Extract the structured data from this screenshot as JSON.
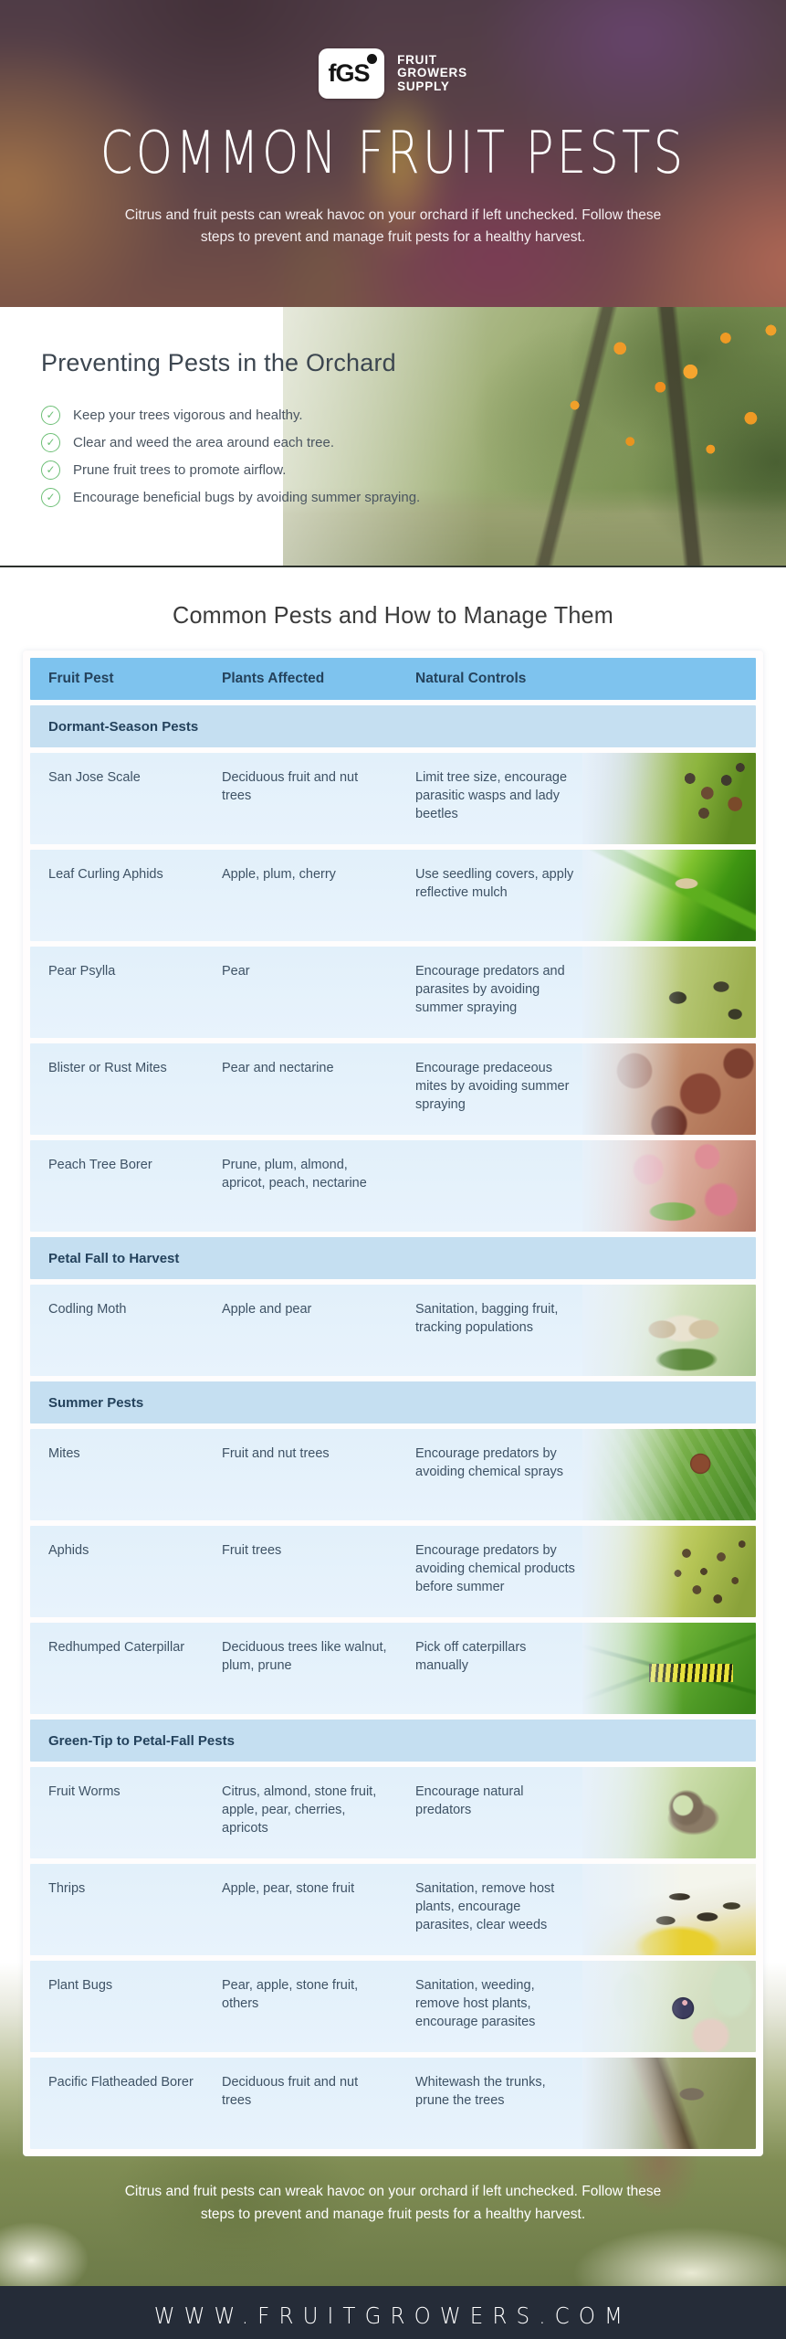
{
  "brand": {
    "logo_monogram": "fGS",
    "logo_lines": [
      "FRUIT",
      "GROWERS",
      "SUPPLY"
    ]
  },
  "hero": {
    "title": "COMMON FRUIT PESTS",
    "subtitle_line1": "Citrus and fruit pests can wreak havoc on your orchard if left unchecked. Follow",
    "subtitle_line2": "these steps to prevent and manage fruit pests for a healthy harvest."
  },
  "prevention": {
    "title": "Preventing Pests in the Orchard",
    "check_icon": "✓",
    "items": [
      "Keep your trees vigorous and healthy.",
      "Clear and weed the area around each tree.",
      "Prune fruit trees to promote airflow.",
      "Encourage beneficial bugs by avoiding summer spraying."
    ]
  },
  "table": {
    "title": "Common Pests and How to Manage Them",
    "columns": [
      "Fruit Pest",
      "Plants Affected",
      "Natural Controls"
    ],
    "sections": [
      {
        "label": "Dormant-Season Pests",
        "rows": [
          {
            "pest": "San Jose Scale",
            "plants": "Deciduous fruit and nut trees",
            "controls": "Limit tree size,  encourage parasitic wasps and lady beetles",
            "photo": "san-jose-scale-photo"
          },
          {
            "pest": "Leaf Curling Aphids",
            "plants": "Apple, plum, cherry",
            "controls": "Use seedling covers, apply reflective mulch",
            "photo": "leaf-aphid-photo"
          },
          {
            "pest": "Pear Psylla",
            "plants": "Pear",
            "controls": "Encourage predators and parasites by avoiding summer spraying",
            "photo": "pear-psylla-photo"
          },
          {
            "pest": "Blister or Rust Mites",
            "plants": "Pear and nectarine",
            "controls": "Encourage predaceous mites by avoiding summer spraying",
            "photo": "rust-mites-photo"
          },
          {
            "pest": "Peach Tree Borer",
            "plants": "Prune, plum, almond, apricot, peach, nectarine",
            "controls": "",
            "photo": "peach-borer-photo"
          }
        ]
      },
      {
        "label": "Petal Fall to Harvest",
        "rows": [
          {
            "pest": "Codling Moth",
            "plants": "Apple and pear",
            "controls": "Sanitation, bagging fruit, tracking populations",
            "photo": "codling-moth-photo"
          }
        ]
      },
      {
        "label": "Summer Pests",
        "rows": [
          {
            "pest": "Mites",
            "plants": "Fruit and nut trees",
            "controls": "Encourage predators by avoiding chemical sprays",
            "photo": "mite-photo"
          },
          {
            "pest": "Aphids",
            "plants": "Fruit trees",
            "controls": "Encourage predators by avoiding chemical products before summer",
            "photo": "aphid-colony-photo"
          },
          {
            "pest": "Redhumped Caterpillar",
            "plants": "Deciduous trees like walnut, plum, prune",
            "controls": "Pick off caterpillars manually",
            "photo": "redhumped-caterpillar-photo"
          }
        ]
      },
      {
        "label": "Green-Tip to Petal-Fall Pests",
        "rows": [
          {
            "pest": "Fruit Worms",
            "plants": "Citrus, almond, stone fruit, apple, pear, cherries, apricots",
            "controls": "Encourage natural predators",
            "photo": "fruit-worm-photo"
          },
          {
            "pest": "Thrips",
            "plants": "Apple, pear, stone fruit",
            "controls": "Sanitation, remove host plants, encourage parasites, clear weeds",
            "photo": "thrips-photo"
          },
          {
            "pest": "Plant Bugs",
            "plants": "Pear, apple, stone fruit, others",
            "controls": "Sanitation, weeding, remove host plants, encourage parasites",
            "photo": "plant-bug-photo"
          },
          {
            "pest": "Pacific Flatheaded Borer",
            "plants": "Deciduous fruit and nut trees",
            "controls": "Whitewash the trunks, prune the trees",
            "photo": "flatheaded-borer-photo"
          }
        ]
      }
    ]
  },
  "outro": {
    "line1": "Citrus and fruit pests can wreak havoc on your orchard if left unchecked. Follow",
    "line2": "these steps to prevent and manage fruit pests for a healthy harvest."
  },
  "footer": {
    "url": "WWW.FRUITGROWERS.COM"
  },
  "colors": {
    "table_header_blue": "#7ec3ee",
    "table_section_blue": "#c5dff1",
    "table_row_blue": "#e4f1fb",
    "table_text": "#3e5265",
    "check_green": "#6dbf76",
    "footer_navy": "#252c38"
  }
}
